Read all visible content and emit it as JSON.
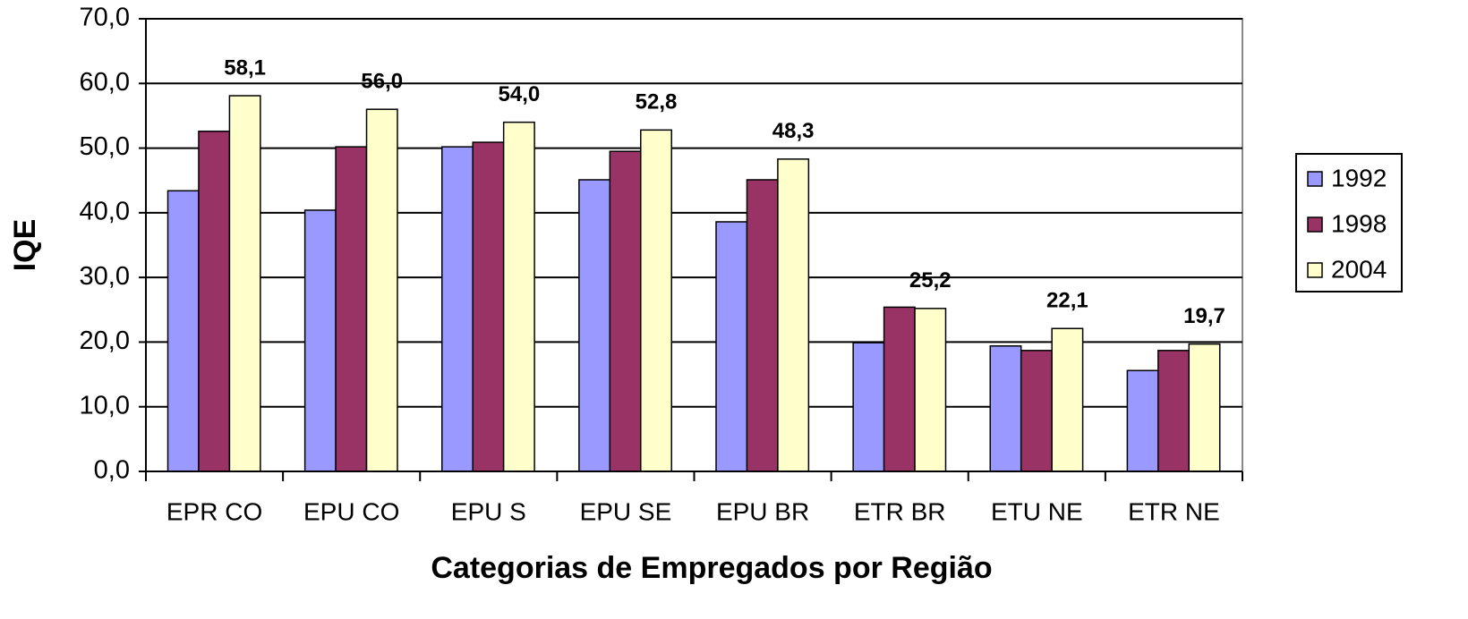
{
  "chart_data": {
    "type": "bar",
    "x_label": "Categorias de Empregados por Região",
    "y_label": "IQE",
    "categories": [
      "EPR CO",
      "EPU CO",
      "EPU S",
      "EPU SE",
      "EPU BR",
      "ETR BR",
      "ETU NE",
      "ETR NE"
    ],
    "series": [
      {
        "name": "1992",
        "color": "#9999ff",
        "values": [
          43.4,
          40.4,
          50.2,
          45.1,
          38.6,
          19.9,
          19.4,
          15.6
        ]
      },
      {
        "name": "1998",
        "color": "#993366",
        "values": [
          52.6,
          50.2,
          50.9,
          49.5,
          45.1,
          25.4,
          18.7,
          18.7
        ]
      },
      {
        "name": "2004",
        "color": "#ffffcc",
        "values": [
          58.1,
          56.0,
          54.0,
          52.8,
          48.3,
          25.2,
          22.1,
          19.7
        ],
        "value_labels": [
          "58,1",
          "56,0",
          "54,0",
          "52,8",
          "48,3",
          "25,2",
          "22,1",
          "19,7"
        ]
      }
    ],
    "ylim": [
      0,
      70
    ],
    "yticks": [
      {
        "value": 0,
        "label": "0,0"
      },
      {
        "value": 10,
        "label": "10,0"
      },
      {
        "value": 20,
        "label": "20,0"
      },
      {
        "value": 30,
        "label": "30,0"
      },
      {
        "value": 40,
        "label": "40,0"
      },
      {
        "value": 50,
        "label": "50,0"
      },
      {
        "value": 60,
        "label": "60,0"
      },
      {
        "value": 70,
        "label": "70,0"
      }
    ],
    "grid": true,
    "legend": "right"
  }
}
